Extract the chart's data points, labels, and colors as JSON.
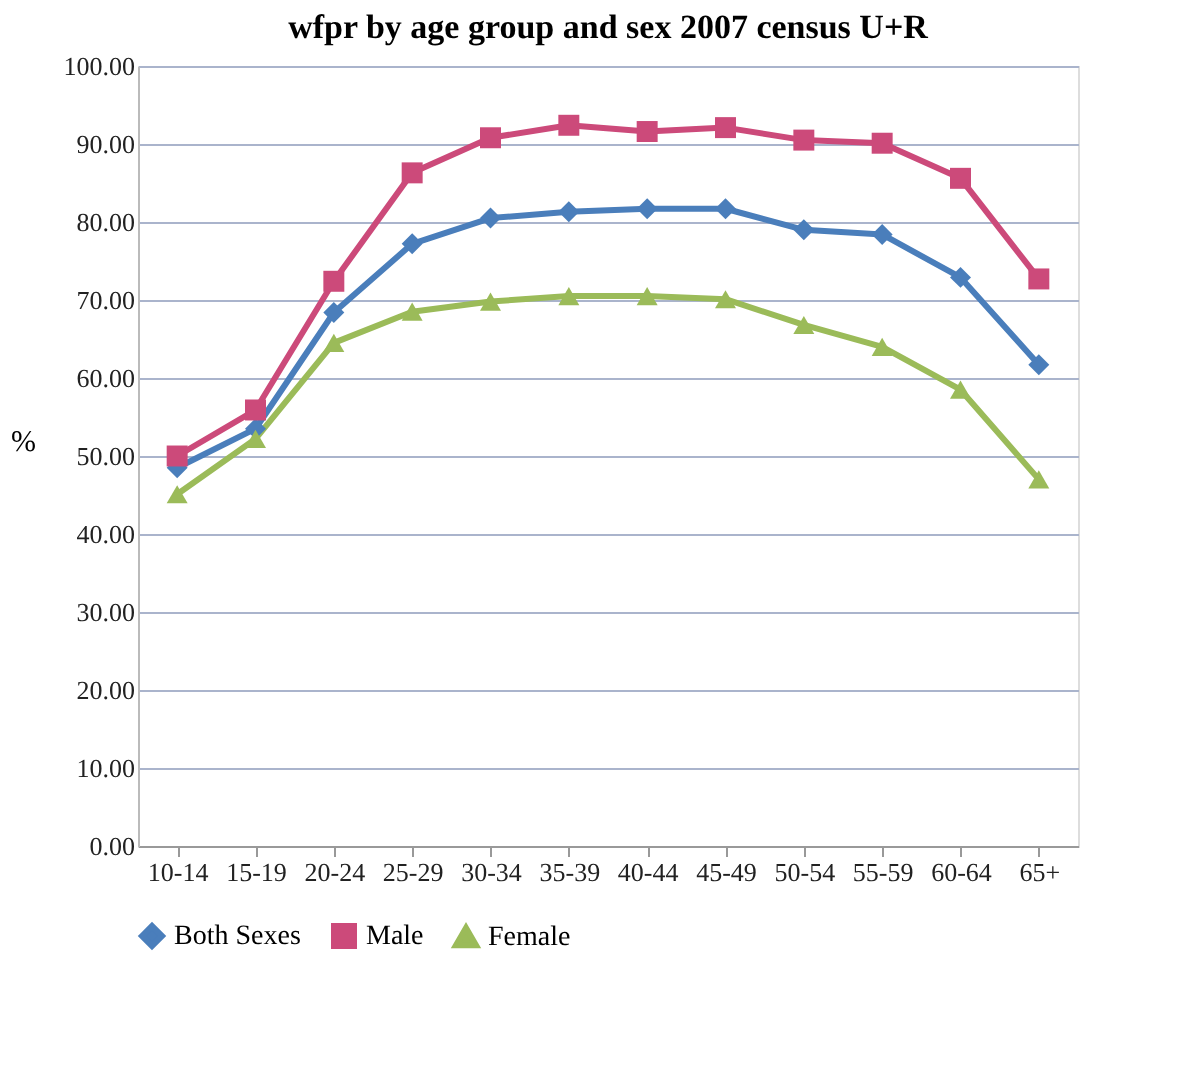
{
  "chart_data": {
    "type": "line",
    "title": "wfpr by age group and sex 2007 census  U+R",
    "ylabel": "%",
    "categories": [
      "10-14",
      "15-19",
      "20-24",
      "25-29",
      "30-34",
      "35-39",
      "40-44",
      "45-49",
      "50-54",
      "55-59",
      "60-64",
      "65+"
    ],
    "series": [
      {
        "name": "Both Sexes",
        "color": "#4a7ebb",
        "marker": "diamond",
        "values": [
          48.5,
          53.5,
          68.4,
          77.2,
          80.5,
          81.3,
          81.7,
          81.7,
          79.0,
          78.4,
          72.9,
          61.7
        ]
      },
      {
        "name": "Male",
        "color": "#cc4a7a",
        "marker": "square",
        "values": [
          50.0,
          55.9,
          72.4,
          86.3,
          90.8,
          92.4,
          91.6,
          92.1,
          90.5,
          90.1,
          85.6,
          72.7
        ]
      },
      {
        "name": "Female",
        "color": "#9bbb59",
        "marker": "triangle",
        "values": [
          45.1,
          52.2,
          64.5,
          68.5,
          69.8,
          70.5,
          70.5,
          70.1,
          66.8,
          64.0,
          58.5,
          47.0
        ]
      }
    ],
    "ylim": [
      0,
      100
    ],
    "yticks": [
      {
        "value": 0,
        "label": "0.00"
      },
      {
        "value": 10,
        "label": "10.00"
      },
      {
        "value": 20,
        "label": "20.00"
      },
      {
        "value": 30,
        "label": "30.00"
      },
      {
        "value": 40,
        "label": "40.00"
      },
      {
        "value": 50,
        "label": "50.00"
      },
      {
        "value": 60,
        "label": "60.00"
      },
      {
        "value": 70,
        "label": "70.00"
      },
      {
        "value": 80,
        "label": "80.00"
      },
      {
        "value": 90,
        "label": "90.00"
      },
      {
        "value": 100,
        "label": "100.00"
      }
    ],
    "grid": "y",
    "legend": "bottom"
  }
}
